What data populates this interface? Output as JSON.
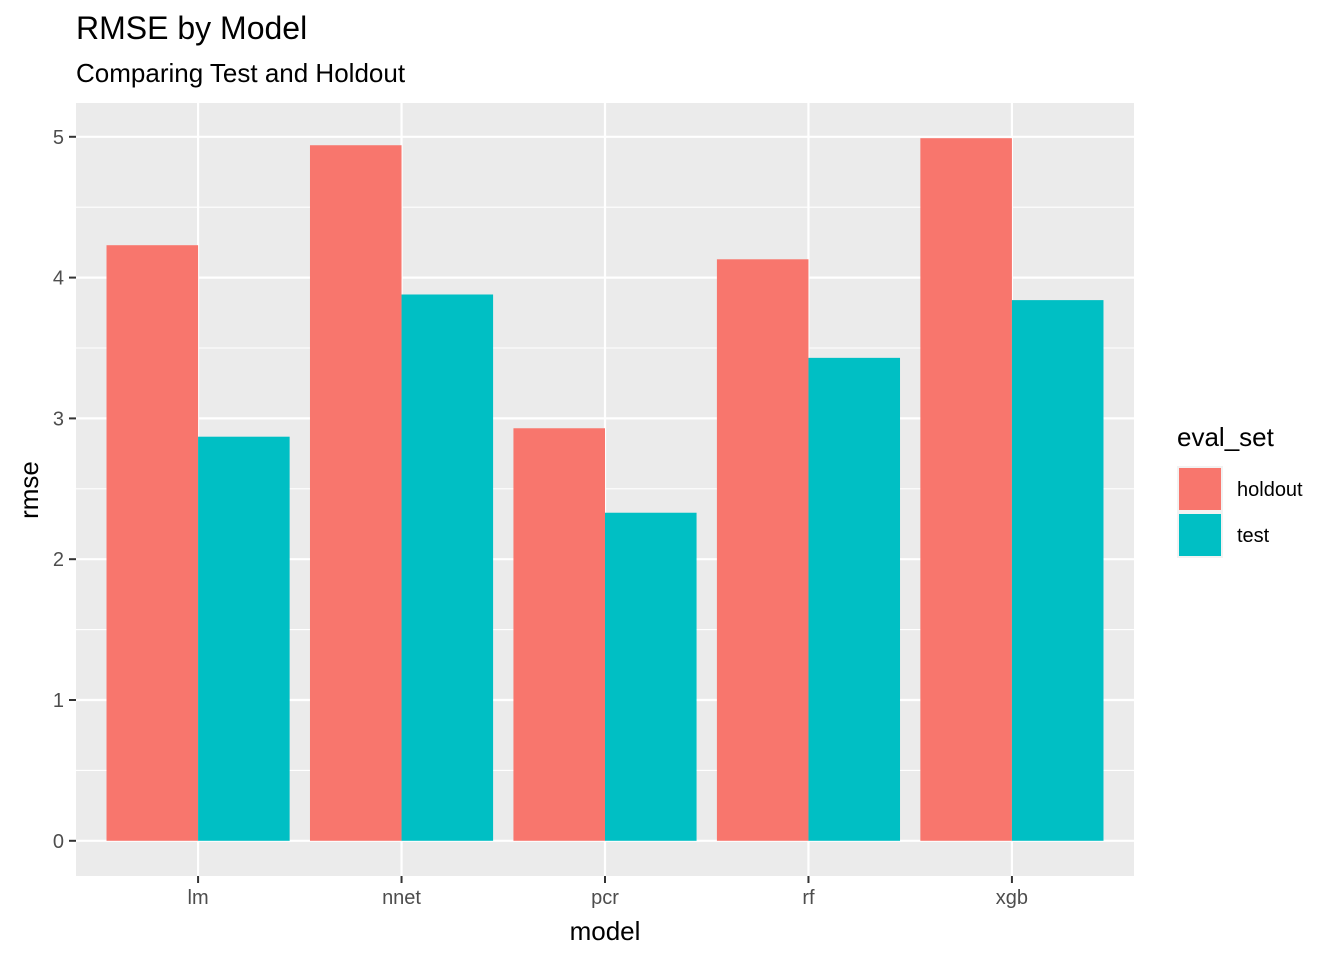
{
  "chart_data": {
    "type": "bar",
    "title": "RMSE by Model",
    "subtitle": "Comparing Test and Holdout",
    "xlabel": "model",
    "ylabel": "rmse",
    "categories": [
      "lm",
      "nnet",
      "pcr",
      "rf",
      "xgb"
    ],
    "series": [
      {
        "name": "holdout",
        "color": "#F8766D",
        "values": [
          4.23,
          4.94,
          2.93,
          4.13,
          4.99
        ]
      },
      {
        "name": "test",
        "color": "#00BFC4",
        "values": [
          2.87,
          3.88,
          2.33,
          3.43,
          3.84
        ]
      }
    ],
    "ylim": [
      -0.25,
      5.24
    ],
    "yticks": [
      0,
      1,
      2,
      3,
      4,
      5
    ],
    "grid": true,
    "panel_background": "#EBEBEB",
    "legend": {
      "title": "eval_set",
      "placement": "right"
    }
  }
}
